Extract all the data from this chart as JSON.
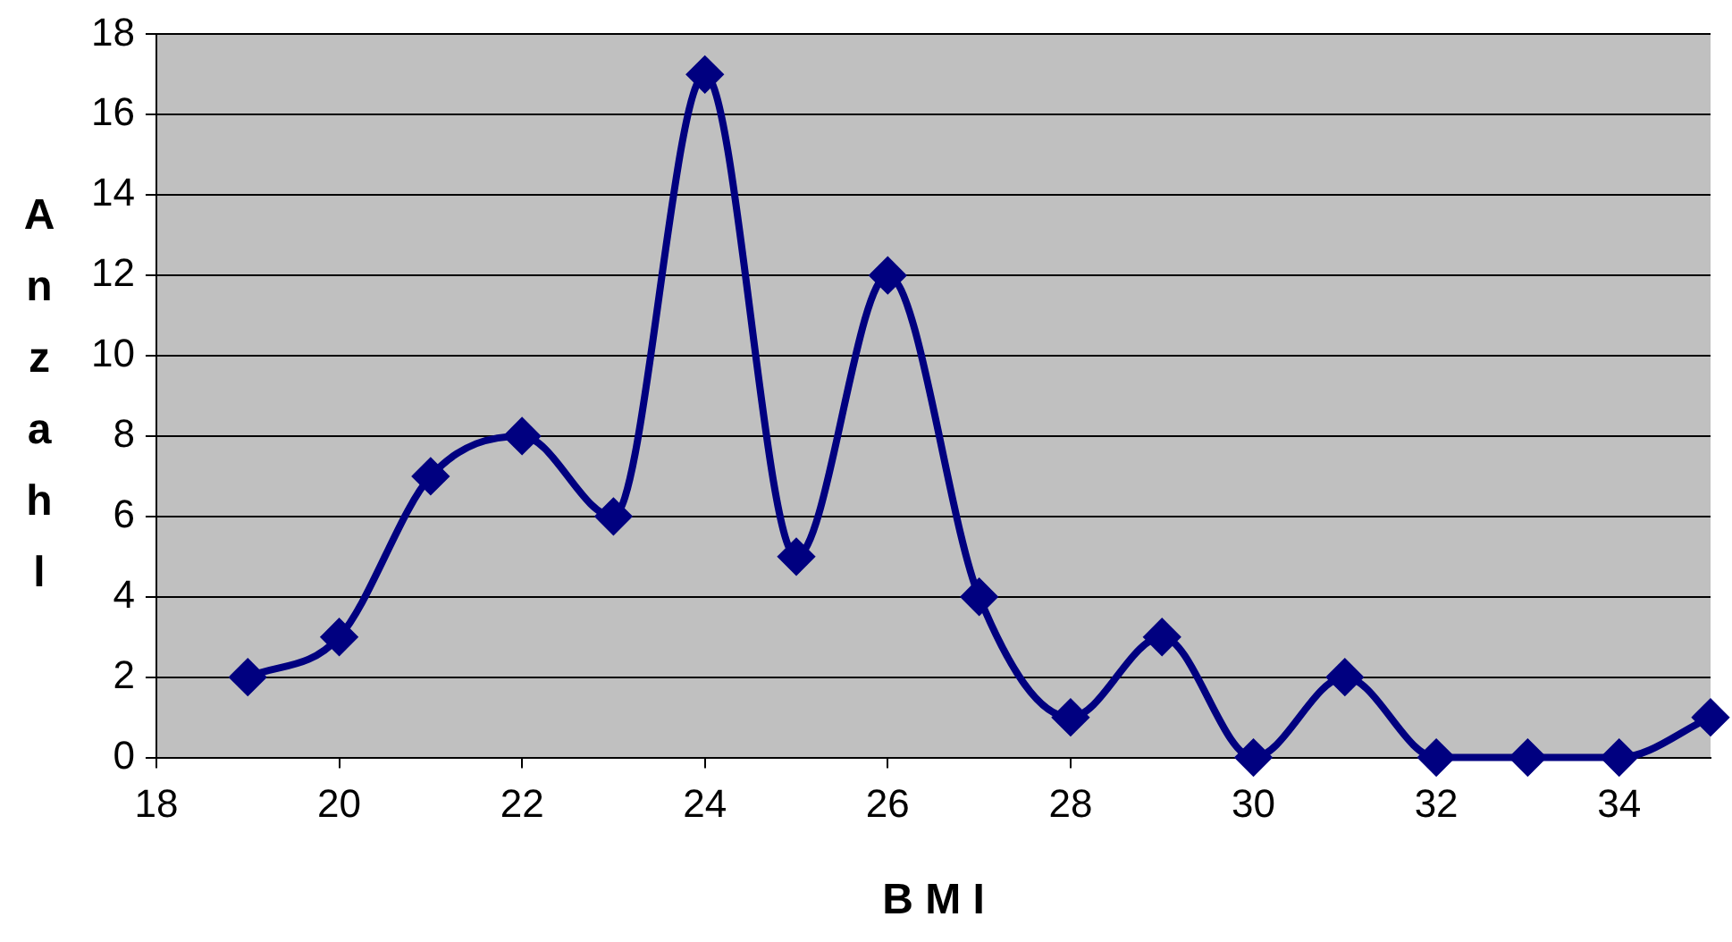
{
  "chart_data": {
    "type": "line",
    "xlabel": "B M I",
    "ylabel": "Anzahl",
    "x": [
      19,
      20,
      21,
      22,
      23,
      24,
      25,
      26,
      27,
      28,
      29,
      30,
      31,
      32,
      33,
      34,
      35
    ],
    "values": [
      2,
      3,
      7,
      8,
      6,
      17,
      5,
      12,
      4,
      1,
      3,
      0,
      2,
      0,
      0,
      0,
      1
    ],
    "color": "#000080",
    "marker": "diamond",
    "line_style": "solid",
    "xlim": [
      18,
      35
    ],
    "xticks": [
      18,
      20,
      22,
      24,
      26,
      28,
      30,
      32,
      34
    ],
    "ylim": [
      0,
      18
    ],
    "yticks": [
      0,
      2,
      4,
      6,
      8,
      10,
      12,
      14,
      16,
      18
    ],
    "grid": "y",
    "legend": false
  }
}
